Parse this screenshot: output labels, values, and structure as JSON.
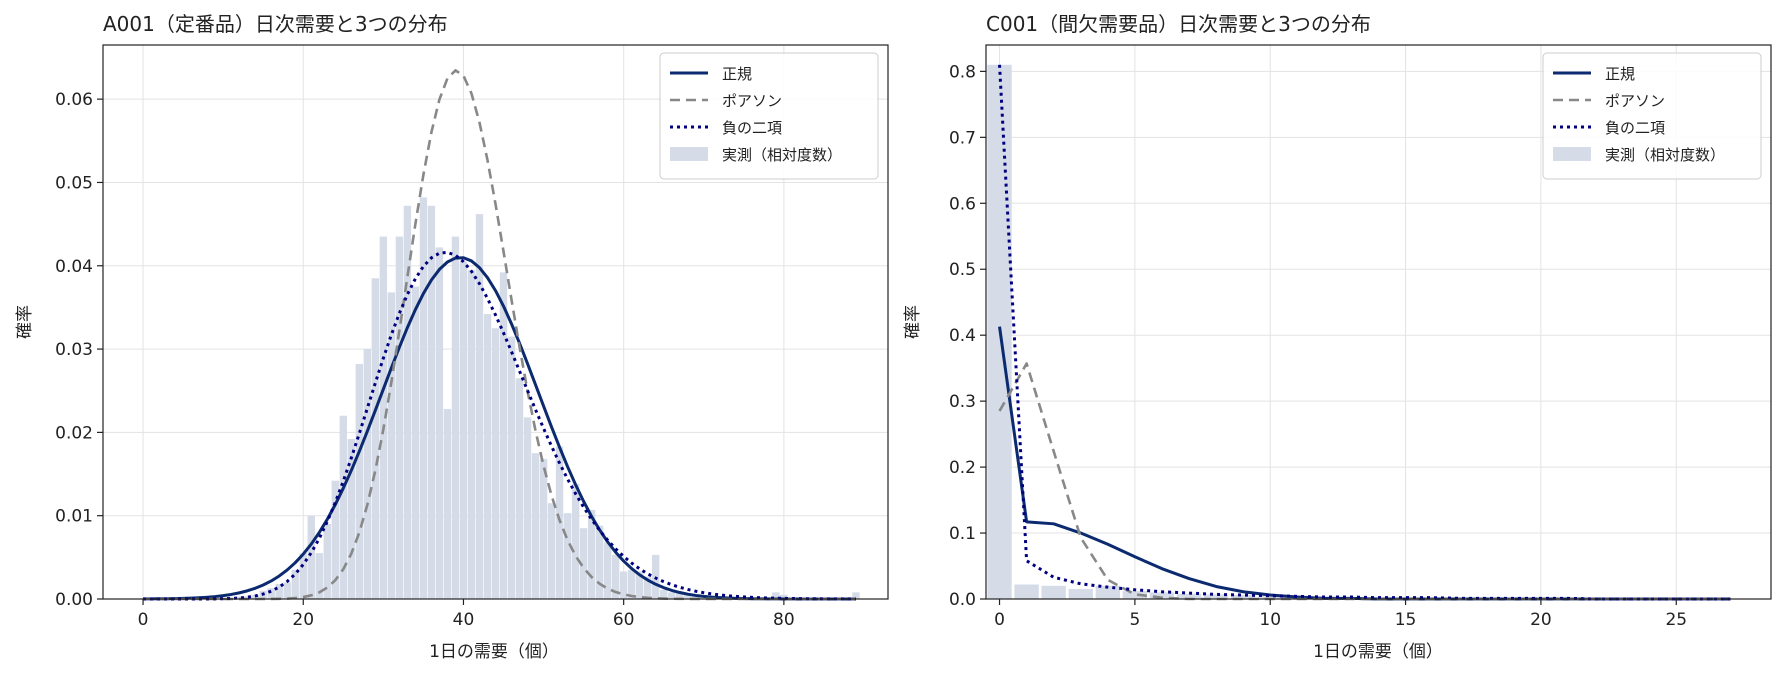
{
  "chart_data": [
    {
      "type": "bar",
      "title": "A001（定番品）日次需要と3つの分布",
      "xlabel": "1日の需要（個）",
      "ylabel": "確率",
      "xlim": [
        -5,
        93
      ],
      "ylim": [
        0,
        0.0665
      ],
      "xticks": [
        "0",
        "20",
        "40",
        "60",
        "80"
      ],
      "yticks": [
        "0.00",
        "0.01",
        "0.02",
        "0.03",
        "0.04",
        "0.05",
        "0.06"
      ],
      "grid": true,
      "legend_position": "top-right",
      "legend": [
        {
          "label": "正規",
          "style": "solid",
          "color": "#0b2a6f"
        },
        {
          "label": "ポアソン",
          "style": "dashed",
          "color": "#888888"
        },
        {
          "label": "負の二項",
          "style": "dotted",
          "color": "#000080"
        },
        {
          "label": "実測（相対度数）",
          "style": "bar",
          "color": "#d5dbe7"
        }
      ],
      "histogram": {
        "name": "実測（相対度数）",
        "x": [
          12,
          13,
          14,
          15,
          16,
          17,
          18,
          19,
          20,
          21,
          22,
          23,
          24,
          25,
          26,
          27,
          28,
          29,
          30,
          31,
          32,
          33,
          34,
          35,
          36,
          37,
          38,
          39,
          40,
          41,
          42,
          43,
          44,
          45,
          46,
          47,
          48,
          49,
          50,
          51,
          52,
          53,
          54,
          55,
          56,
          57,
          58,
          59,
          60,
          61,
          62,
          63,
          64,
          65,
          66,
          67,
          68,
          69,
          70,
          79,
          80,
          89
        ],
        "values": [
          0.0003,
          0.0003,
          0.0005,
          0.001,
          0.0013,
          0.0018,
          0.002,
          0.0035,
          0.0055,
          0.01,
          0.0055,
          0.009,
          0.0142,
          0.022,
          0.0192,
          0.0282,
          0.03,
          0.0385,
          0.0435,
          0.0368,
          0.0435,
          0.0472,
          0.0375,
          0.0482,
          0.0472,
          0.0422,
          0.0228,
          0.0435,
          0.0405,
          0.0395,
          0.0462,
          0.0342,
          0.0325,
          0.0392,
          0.0315,
          0.0265,
          0.0218,
          0.0175,
          0.0168,
          0.0115,
          0.0183,
          0.0103,
          0.0138,
          0.0085,
          0.0107,
          0.0088,
          0.0068,
          0.0053,
          0.0033,
          0.0035,
          0.0033,
          0.0027,
          0.0053,
          0.0011,
          0.0008,
          0.0008,
          0.0005,
          0.0003,
          0.0003,
          0.0008,
          0.0005,
          0.0008
        ]
      },
      "series": [
        {
          "name": "正規",
          "kind": "normal",
          "mean": 39.6,
          "sd": 9.73,
          "x_range": [
            0,
            89
          ]
        },
        {
          "name": "ポアソン",
          "kind": "poisson",
          "mean": 39.6,
          "x_range": [
            0,
            89
          ]
        },
        {
          "name": "負の二項",
          "kind": "negbinom",
          "mean": 39.6,
          "variance": 94.7,
          "x_range": [
            0,
            89
          ]
        }
      ]
    },
    {
      "type": "bar",
      "title": "C001（間欠需要品）日次需要と3つの分布",
      "xlabel": "1日の需要（個）",
      "ylabel": "確率",
      "xlim": [
        -0.5,
        28.5
      ],
      "ylim": [
        0,
        0.84
      ],
      "xticks": [
        "0",
        "5",
        "10",
        "15",
        "20",
        "25"
      ],
      "yticks": [
        "0.0",
        "0.1",
        "0.2",
        "0.3",
        "0.4",
        "0.5",
        "0.6",
        "0.7",
        "0.8"
      ],
      "grid": true,
      "legend_position": "top-right",
      "legend": [
        {
          "label": "正規",
          "style": "solid",
          "color": "#0b2a6f"
        },
        {
          "label": "ポアソン",
          "style": "dashed",
          "color": "#888888"
        },
        {
          "label": "負の二項",
          "style": "dotted",
          "color": "#000080"
        },
        {
          "label": "実測（相対度数）",
          "style": "bar",
          "color": "#d5dbe7"
        }
      ],
      "histogram": {
        "name": "実測（相対度数）",
        "x": [
          0,
          1,
          2,
          3,
          4,
          5,
          6,
          7,
          8,
          9,
          10,
          11,
          12,
          13,
          14,
          15
        ],
        "values": [
          0.81,
          0.022,
          0.02,
          0.015,
          0.02,
          0.012,
          0.01,
          0.008,
          0.007,
          0.006,
          0.005,
          0.004,
          0.003,
          0.003,
          0.002,
          0.002
        ]
      },
      "series": [
        {
          "name": "正規",
          "points": [
            [
              0,
              0.413
            ],
            [
              1,
              0.117
            ],
            [
              2,
              0.114
            ],
            [
              3,
              0.1
            ],
            [
              4,
              0.083
            ],
            [
              5,
              0.064
            ],
            [
              6,
              0.046
            ],
            [
              7,
              0.031
            ],
            [
              8,
              0.019
            ],
            [
              9,
              0.011
            ],
            [
              10,
              0.006
            ],
            [
              11,
              0.003
            ],
            [
              12,
              0.001
            ],
            [
              13,
              0.001
            ],
            [
              14,
              0
            ],
            [
              15,
              0
            ],
            [
              16,
              0
            ],
            [
              17,
              0
            ],
            [
              18,
              0
            ],
            [
              19,
              0
            ],
            [
              20,
              0
            ],
            [
              21,
              0
            ],
            [
              22,
              0
            ],
            [
              23,
              0
            ],
            [
              24,
              0
            ],
            [
              25,
              0
            ],
            [
              26,
              0
            ],
            [
              27,
              0
            ]
          ]
        },
        {
          "name": "ポアソン",
          "points": [
            [
              0,
              0.285
            ],
            [
              1,
              0.357
            ],
            [
              2,
              0.224
            ],
            [
              3,
              0.093
            ],
            [
              4,
              0.029
            ],
            [
              5,
              0.007
            ],
            [
              6,
              0.002
            ],
            [
              7,
              0
            ],
            [
              8,
              0
            ],
            [
              9,
              0
            ],
            [
              10,
              0
            ],
            [
              11,
              0
            ],
            [
              12,
              0
            ],
            [
              13,
              0
            ],
            [
              14,
              0
            ],
            [
              15,
              0
            ],
            [
              16,
              0
            ],
            [
              17,
              0
            ],
            [
              18,
              0
            ],
            [
              19,
              0
            ],
            [
              20,
              0
            ],
            [
              21,
              0
            ],
            [
              22,
              0
            ],
            [
              23,
              0
            ],
            [
              24,
              0
            ],
            [
              25,
              0
            ],
            [
              26,
              0
            ],
            [
              27,
              0
            ]
          ]
        },
        {
          "name": "負の二項",
          "points": [
            [
              0,
              0.81
            ],
            [
              1,
              0.058
            ],
            [
              2,
              0.033
            ],
            [
              3,
              0.023
            ],
            [
              4,
              0.018
            ],
            [
              5,
              0.014
            ],
            [
              6,
              0.011
            ],
            [
              7,
              0.009
            ],
            [
              8,
              0.007
            ],
            [
              9,
              0.006
            ],
            [
              10,
              0.005
            ],
            [
              11,
              0.004
            ],
            [
              12,
              0.003
            ],
            [
              13,
              0.003
            ],
            [
              14,
              0.002
            ],
            [
              15,
              0.002
            ],
            [
              16,
              0.002
            ],
            [
              17,
              0.001
            ],
            [
              18,
              0.001
            ],
            [
              19,
              0.001
            ],
            [
              20,
              0.001
            ],
            [
              21,
              0.001
            ],
            [
              22,
              0
            ],
            [
              23,
              0
            ],
            [
              24,
              0
            ],
            [
              25,
              0
            ],
            [
              26,
              0
            ],
            [
              27,
              0
            ]
          ]
        }
      ]
    }
  ]
}
